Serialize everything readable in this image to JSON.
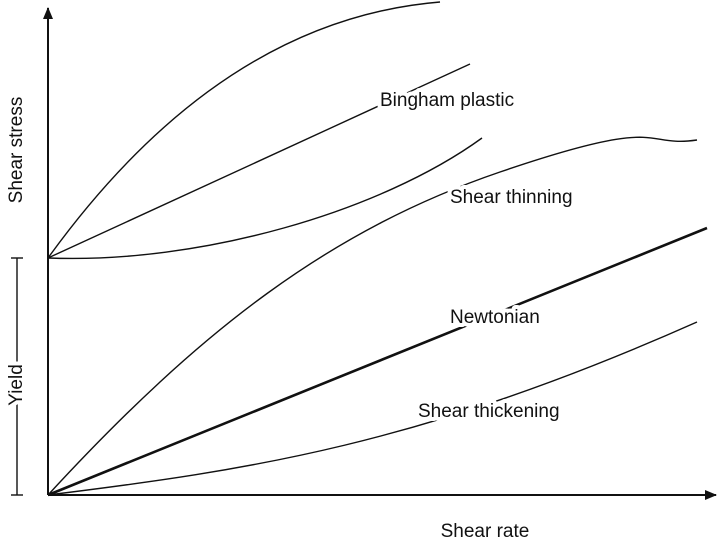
{
  "axes": {
    "y_label": "Shear stress",
    "x_label": "Shear rate",
    "yield_label": "Yield"
  },
  "curves": {
    "bingham": "Bingham plastic",
    "thinning": "Shear thinning",
    "newtonian": "Newtonian",
    "thickening": "Shear thickening"
  }
}
